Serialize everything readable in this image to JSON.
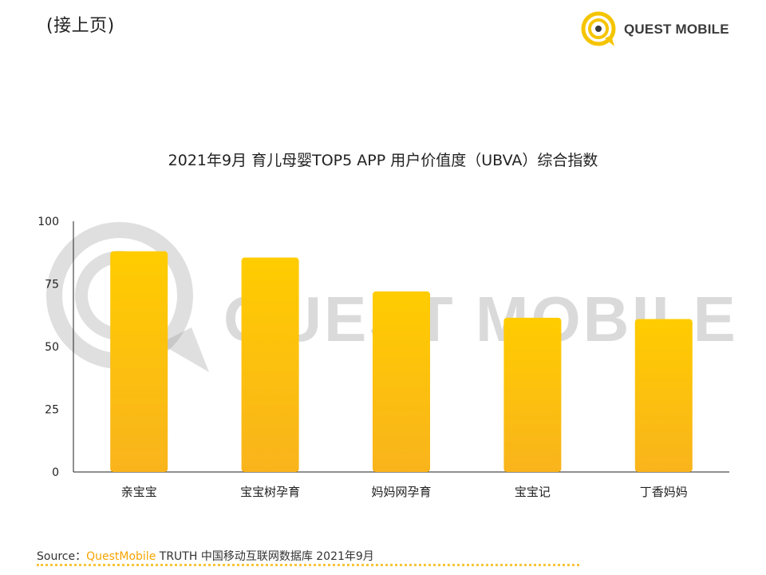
{
  "page_note": "(接上页)",
  "brand": {
    "logo_text": "QUEST MOBILE",
    "logo_color": "#f5c400",
    "watermark_text": "QUEST MOBILE"
  },
  "source": {
    "prefix": "Source：",
    "brand": "QuestMobile",
    "rest": " TRUTH 中国移动互联网数据库 2021年9月"
  },
  "chart_data": {
    "type": "bar",
    "title": "2021年9月 育儿母婴TOP5 APP 用户价值度（UBVA）综合指数",
    "xlabel": "",
    "ylabel": "",
    "ylim": [
      0,
      100
    ],
    "yticks": [
      0,
      25,
      50,
      75,
      100
    ],
    "grid": false,
    "legend": "none",
    "categories": [
      "亲宝宝",
      "宝宝树孕育",
      "妈妈网孕育",
      "宝宝记",
      "丁香妈妈"
    ],
    "values": [
      88,
      85.5,
      72,
      61.5,
      61
    ],
    "colors": {
      "bar_top": "#ffcc00",
      "bar_bottom": "#f9b41c",
      "axis": "#222222"
    }
  }
}
